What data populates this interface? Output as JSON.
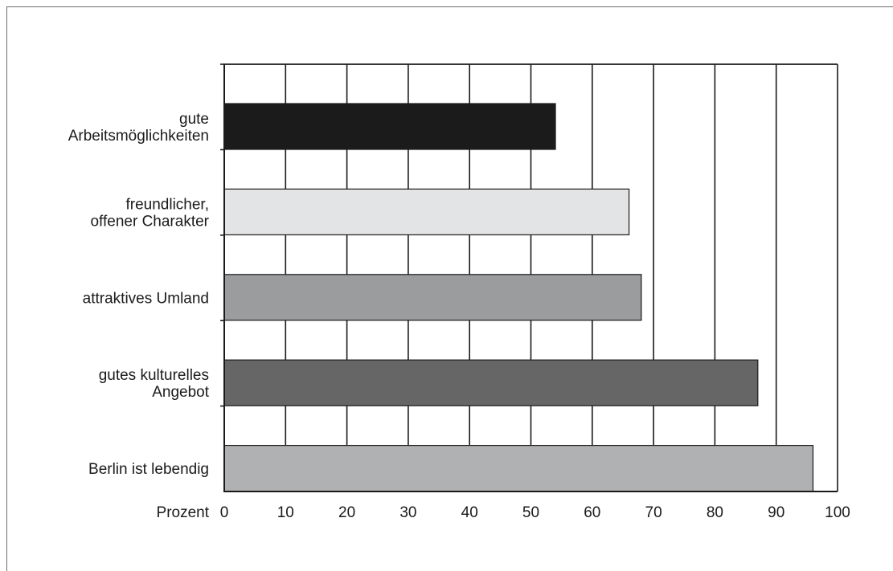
{
  "chart_data": {
    "type": "bar",
    "orientation": "horizontal",
    "categories": [
      [
        "gute",
        "Arbeitsmöglichkeiten"
      ],
      [
        "freundlicher,",
        "offener Charakter"
      ],
      [
        "attraktives Umland"
      ],
      [
        "gutes kulturelles",
        "Angebot"
      ],
      [
        "Berlin ist lebendig"
      ]
    ],
    "values": [
      54,
      66,
      68,
      87,
      96
    ],
    "colors": [
      "#1b1b1b",
      "#e3e4e5",
      "#9b9c9e",
      "#666667",
      "#b0b1b3"
    ],
    "xlabel": "Prozent",
    "xlim": [
      0,
      100
    ],
    "xticks": [
      0,
      10,
      20,
      30,
      40,
      50,
      60,
      70,
      80,
      90,
      100
    ],
    "grid": true,
    "legend": "none"
  }
}
